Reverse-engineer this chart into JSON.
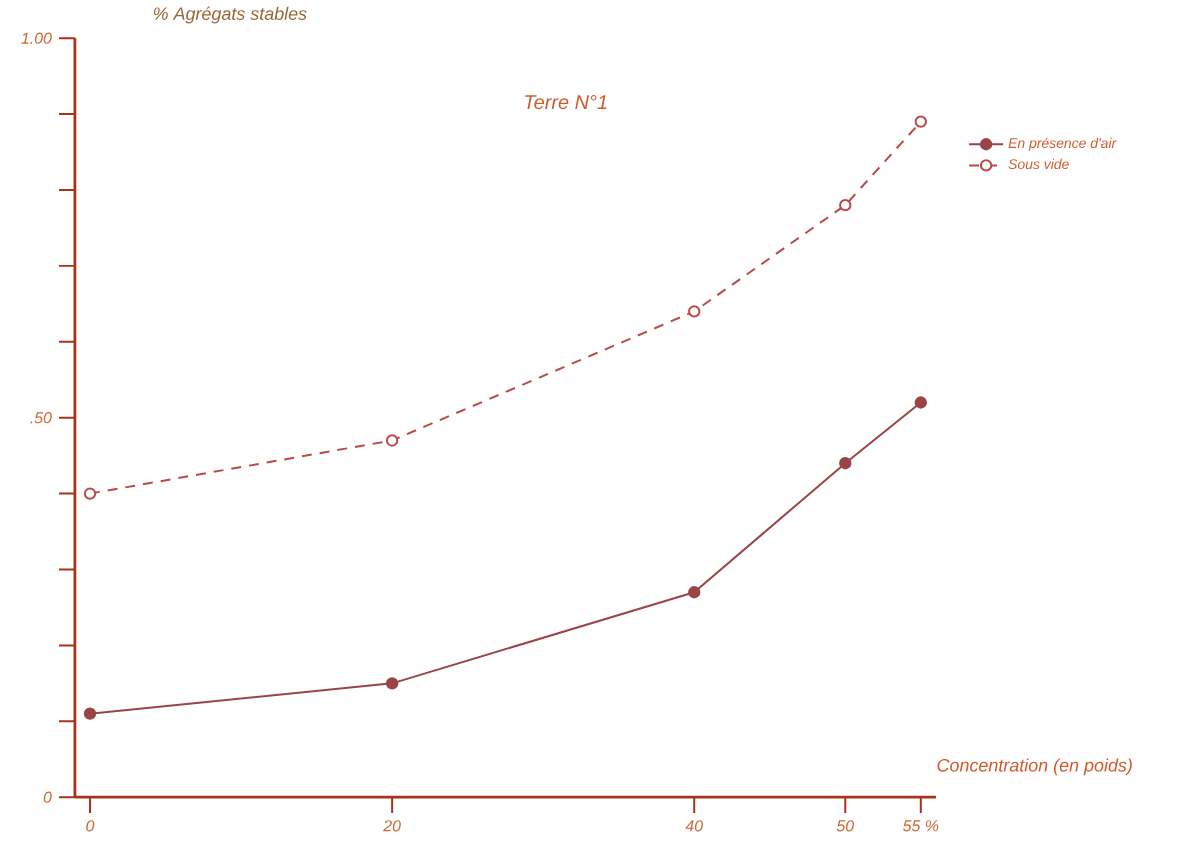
{
  "chart_data": {
    "type": "line",
    "title": "Terre N°1",
    "xlabel": "Concentration (en poids)",
    "ylabel": "% Agrégats stables",
    "x": [
      0,
      20,
      40,
      50,
      55
    ],
    "series": [
      {
        "name": "En présence d'air",
        "color": "#9a4448",
        "values": [
          0.11,
          0.15,
          0.27,
          0.44,
          0.52
        ],
        "marker": "circle",
        "line_style": "solid"
      },
      {
        "name": "Sous vide",
        "color": "#b94a4a",
        "values": [
          0.4,
          0.47,
          0.64,
          0.78,
          0.89
        ],
        "marker": "circle",
        "line_style": "dashed"
      }
    ],
    "xlim": [
      -1,
      56
    ],
    "ylim": [
      0,
      1.0
    ],
    "xticks": [
      0,
      20,
      40,
      50,
      {
        "value": 55,
        "label": "55 %"
      }
    ],
    "yticks": [
      {
        "value": 0,
        "label": "0"
      },
      {
        "value": 0.1,
        "label": null
      },
      {
        "value": 0.2,
        "label": null
      },
      {
        "value": 0.3,
        "label": null
      },
      {
        "value": 0.4,
        "label": null
      },
      {
        "value": 0.5,
        "label": ".50"
      },
      {
        "value": 0.6,
        "label": null
      },
      {
        "value": 0.7,
        "label": null
      },
      {
        "value": 0.8,
        "label": null
      },
      {
        "value": 0.9,
        "label": null
      },
      {
        "value": 1.0,
        "label": "1.00"
      }
    ],
    "grid": false,
    "legend": "top right"
  }
}
